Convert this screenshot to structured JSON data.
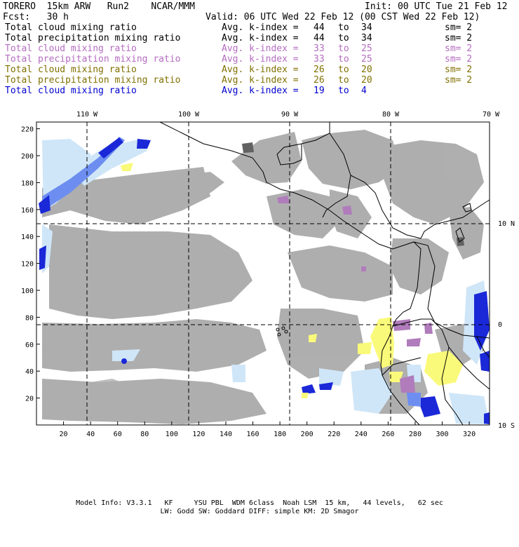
{
  "header": {
    "model": "TORERO  15km ARW   Run2    NCAR/MMM",
    "init": "Init: 00 UTC Tue 21 Feb 12",
    "forecast": "Fcst:   30 h",
    "valid": "Valid: 06 UTC Wed 22 Feb 12 (00 CST Wed 22 Feb 12)"
  },
  "fields": [
    {
      "name": "Total cloud mixing ratio",
      "kindex_label": "Avg. k-index =",
      "from": "44",
      "to_word": "to",
      "to": "34",
      "sm": "sm= 2",
      "color": "#000000"
    },
    {
      "name": "Total precipitation mixing ratio",
      "kindex_label": "Avg. k-index =",
      "from": "44",
      "to_word": "to",
      "to": "34",
      "sm": "sm= 2",
      "color": "#000000"
    },
    {
      "name": "Total cloud mixing ratio",
      "kindex_label": "Avg. k-index =",
      "from": "33",
      "to_word": "to",
      "to": "25",
      "sm": "sm= 2",
      "color": "#b46cc0"
    },
    {
      "name": "Total precipitation mixing ratio",
      "kindex_label": "Avg. k-index =",
      "from": "33",
      "to_word": "to",
      "to": "25",
      "sm": "sm= 2",
      "color": "#b46cc0"
    },
    {
      "name": "Total cloud mixing ratio",
      "kindex_label": "Avg. k-index =",
      "from": "26",
      "to_word": "to",
      "to": "20",
      "sm": "sm= 2",
      "color": "#807000"
    },
    {
      "name": "Total precipitation mixing ratio",
      "kindex_label": "Avg. k-index =",
      "from": "26",
      "to_word": "to",
      "to": "20",
      "sm": "sm= 2",
      "color": "#807000"
    },
    {
      "name": "Total cloud mixing ratio",
      "kindex_label": "Avg. k-index =",
      "from": "19",
      "to_word": "to",
      "to": "4",
      "sm": "",
      "color": "#0000d0"
    }
  ],
  "map": {
    "lon_labels": [
      "110 W",
      "100 W",
      "90 W",
      "80 W",
      "70 W"
    ],
    "lat_labels": [
      "10 N",
      "0",
      "10 S"
    ],
    "x_grid_labels": [
      "20",
      "40",
      "60",
      "80",
      "100",
      "120",
      "140",
      "160",
      "180",
      "200",
      "220",
      "240",
      "260",
      "280",
      "300",
      "320"
    ],
    "y_grid_labels": [
      "220",
      "200",
      "180",
      "160",
      "140",
      "120",
      "100",
      "80",
      "60",
      "40",
      "20"
    ],
    "colors": {
      "cloud_gray": "#a8a8a8",
      "light_blue": "#cfe6f8",
      "mid_blue": "#6d8ef0",
      "dark_blue": "#1a28d8",
      "yellow": "#fafa7a",
      "purple": "#b07cbc"
    }
  },
  "footer": {
    "line1": "Model Info: V3.3.1   KF     YSU PBL  WDM 6class  Noah LSM  15 km,   44 levels,   62 sec",
    "line2": "LW: Godd SW: Goddard DIFF: simple KM: 2D Smagor"
  }
}
